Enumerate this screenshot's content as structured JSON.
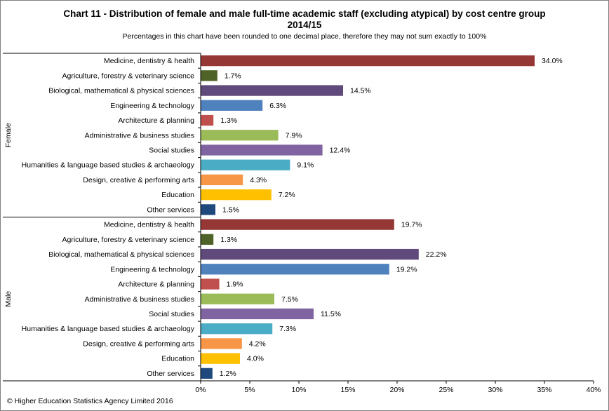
{
  "title_line1": "Chart 11 - Distribution  of female and male full-time academic staff (excluding atypical) by cost  centre group",
  "title_line2": "2014/15",
  "subtitle": "Percentages in this chart have been rounded to one decimal place, therefore they may not sum exactly to 100%",
  "footer": "© Higher Education Statistics Agency Limited 2016",
  "chart_data": {
    "type": "bar",
    "orientation": "horizontal",
    "xlim": [
      0,
      40
    ],
    "x_ticks": [
      "0%",
      "5%",
      "10%",
      "15%",
      "20%",
      "25%",
      "30%",
      "35%",
      "40%"
    ],
    "value_format": "percent_1dp",
    "grid": false,
    "categories": [
      "Medicine, dentistry & health",
      "Agriculture, forestry & veterinary science",
      "Biological, mathematical & physical sciences",
      "Engineering & technology",
      "Architecture & planning",
      "Administrative & business studies",
      "Social studies",
      "Humanities & language based studies & archaeology",
      "Design, creative & performing arts",
      "Education",
      "Other services"
    ],
    "colors": [
      "#953735",
      "#4f6228",
      "#604a7b",
      "#4f81bd",
      "#c0504d",
      "#9bbb59",
      "#8064a2",
      "#4bacc6",
      "#f79646",
      "#ffc000",
      "#1f497d"
    ],
    "groups": [
      {
        "name": "Female",
        "values": [
          34.0,
          1.7,
          14.5,
          6.3,
          1.3,
          7.9,
          12.4,
          9.1,
          4.3,
          7.2,
          1.5
        ]
      },
      {
        "name": "Male",
        "values": [
          19.7,
          1.3,
          22.2,
          19.2,
          1.9,
          7.5,
          11.5,
          7.3,
          4.2,
          4.0,
          1.2
        ]
      }
    ]
  }
}
